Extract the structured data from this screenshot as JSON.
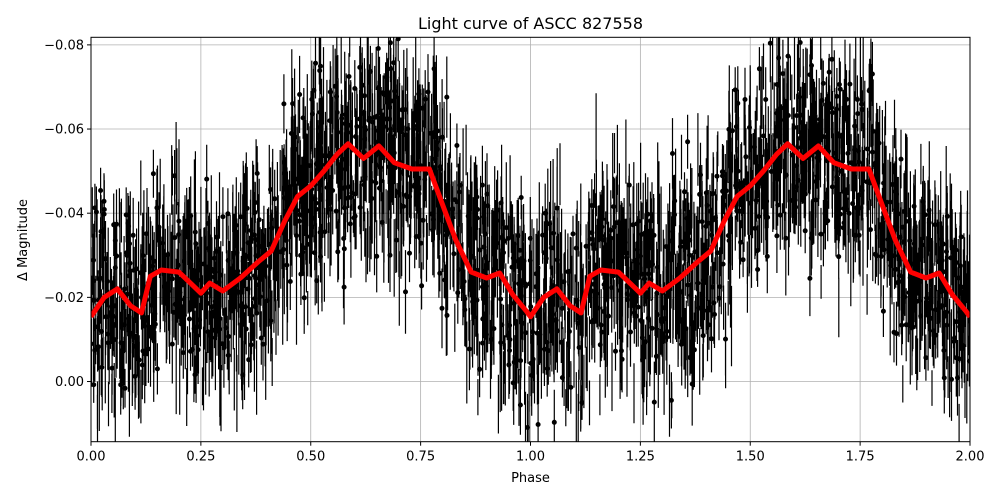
{
  "chart_data": {
    "type": "scatter",
    "title": "Light curve of ASCC 827558",
    "xlabel": "Phase",
    "ylabel": "Δ Magnitude",
    "xlim": [
      0,
      2
    ],
    "ylim": [
      0.0143,
      -0.0818
    ],
    "y_inverted": true,
    "grid": true,
    "xticks": [
      0,
      0.25,
      0.5,
      0.75,
      1.0,
      1.25,
      1.5,
      1.75,
      2.0
    ],
    "xtick_labels": [
      "0.00",
      "0.25",
      "0.50",
      "0.75",
      "1.00",
      "1.25",
      "1.50",
      "1.75",
      "2.00"
    ],
    "yticks": [
      -0.08,
      -0.06,
      -0.04,
      -0.02,
      0.0
    ],
    "ytick_labels": [
      "−0.08",
      "−0.06",
      "−0.04",
      "−0.02",
      "0.00"
    ],
    "series": [
      {
        "kind": "errorbar-scatter",
        "color": "#000000",
        "description_of_values": "dense black points with vertical error bars scattered about the binned curve, spread roughly ±0.02 mag"
      },
      {
        "kind": "line",
        "color": "#ff0000",
        "x": [
          0.0,
          0.03,
          0.06,
          0.09,
          0.115,
          0.135,
          0.16,
          0.2,
          0.23,
          0.25,
          0.27,
          0.3,
          0.34,
          0.36,
          0.38,
          0.41,
          0.44,
          0.47,
          0.5,
          0.53,
          0.56,
          0.585,
          0.62,
          0.655,
          0.69,
          0.73,
          0.77,
          0.8,
          0.83,
          0.865,
          0.9,
          0.93,
          0.96,
          0.99,
          1.0,
          1.03,
          1.06,
          1.09,
          1.115,
          1.135,
          1.16,
          1.2,
          1.23,
          1.25,
          1.27,
          1.3,
          1.34,
          1.36,
          1.38,
          1.41,
          1.44,
          1.47,
          1.5,
          1.53,
          1.56,
          1.585,
          1.62,
          1.655,
          1.69,
          1.73,
          1.77,
          1.8,
          1.83,
          1.865,
          1.9,
          1.93,
          1.96,
          1.99,
          2.0
        ],
        "y": [
          -0.0154,
          -0.02,
          -0.022,
          -0.018,
          -0.0163,
          -0.025,
          -0.0265,
          -0.026,
          -0.023,
          -0.021,
          -0.0234,
          -0.0215,
          -0.0246,
          -0.0265,
          -0.0284,
          -0.031,
          -0.038,
          -0.044,
          -0.0465,
          -0.05,
          -0.054,
          -0.0565,
          -0.053,
          -0.056,
          -0.052,
          -0.0505,
          -0.0505,
          -0.042,
          -0.0336,
          -0.026,
          -0.0246,
          -0.0258,
          -0.0206,
          -0.0168,
          -0.0154,
          -0.02,
          -0.022,
          -0.018,
          -0.0163,
          -0.025,
          -0.0265,
          -0.026,
          -0.023,
          -0.021,
          -0.0234,
          -0.0215,
          -0.0246,
          -0.0265,
          -0.0284,
          -0.031,
          -0.038,
          -0.044,
          -0.0465,
          -0.05,
          -0.054,
          -0.0565,
          -0.053,
          -0.056,
          -0.052,
          -0.0505,
          -0.0505,
          -0.042,
          -0.0336,
          -0.026,
          -0.0246,
          -0.0258,
          -0.0206,
          -0.0168,
          -0.0154
        ]
      }
    ]
  }
}
